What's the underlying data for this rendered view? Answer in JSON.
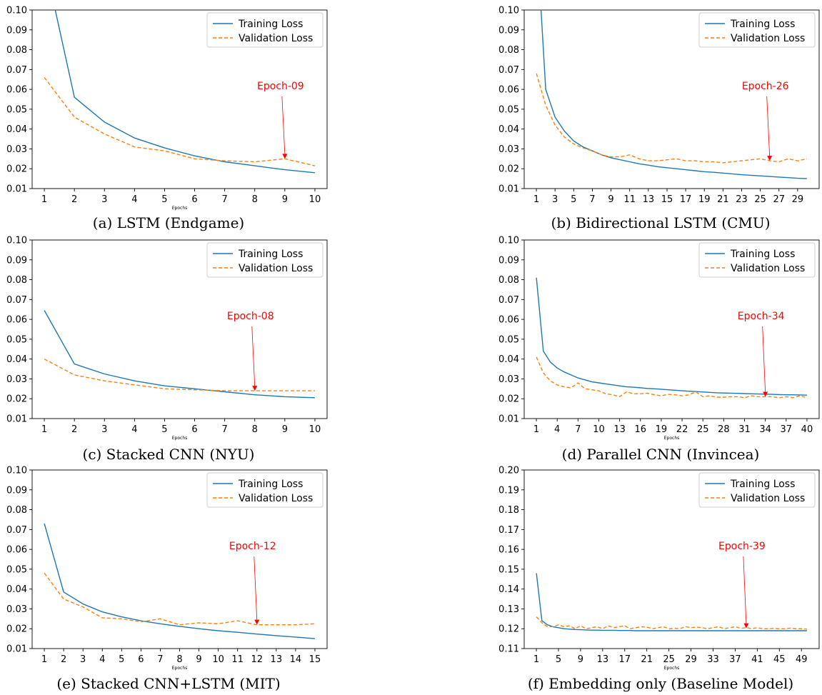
{
  "legend": {
    "training": "Training Loss",
    "validation": "Validation Loss"
  },
  "colors": {
    "training": "#1f77b4",
    "validation": "#ff7f0e",
    "annotation": "#ff0000"
  },
  "chart_data": [
    {
      "type": "line",
      "caption": "(a) LSTM (Endgame)",
      "xlabel": "Epochs",
      "ylim": [
        0.01,
        0.1
      ],
      "yticks": [
        "0.01",
        "0.02",
        "0.03",
        "0.04",
        "0.05",
        "0.06",
        "0.07",
        "0.08",
        "0.09",
        "0.10"
      ],
      "xticks": [
        1,
        2,
        3,
        4,
        5,
        6,
        7,
        8,
        9,
        10
      ],
      "x": [
        1,
        2,
        3,
        4,
        5,
        6,
        7,
        8,
        9,
        10
      ],
      "series": [
        {
          "name": "Training Loss",
          "values": [
            0.125,
            0.056,
            0.0435,
            0.0355,
            0.0305,
            0.0265,
            0.0235,
            0.0215,
            0.0195,
            0.018
          ]
        },
        {
          "name": "Validation Loss",
          "values": [
            0.066,
            0.046,
            0.0375,
            0.031,
            0.029,
            0.025,
            0.024,
            0.0235,
            0.025,
            0.0215
          ]
        }
      ],
      "annotation": {
        "text": "Epoch-09",
        "x": 9,
        "y": 0.025
      },
      "legend_position": "top-right"
    },
    {
      "type": "line",
      "caption": "(b) Bidirectional LSTM (CMU)",
      "xlabel": "",
      "ylim": [
        0.01,
        0.1
      ],
      "yticks": [
        "0.01",
        "0.02",
        "0.03",
        "0.04",
        "0.05",
        "0.06",
        "0.07",
        "0.08",
        "0.09",
        "0.10"
      ],
      "xticks": [
        1,
        3,
        5,
        7,
        9,
        11,
        13,
        15,
        17,
        19,
        21,
        23,
        25,
        27,
        29
      ],
      "x": [
        1,
        2,
        3,
        4,
        5,
        6,
        7,
        8,
        9,
        10,
        11,
        12,
        13,
        14,
        15,
        16,
        17,
        18,
        19,
        20,
        21,
        22,
        23,
        24,
        25,
        26,
        27,
        28,
        29,
        30
      ],
      "series": [
        {
          "name": "Training Loss",
          "values": [
            0.14,
            0.06,
            0.046,
            0.039,
            0.034,
            0.031,
            0.029,
            0.027,
            0.0255,
            0.0245,
            0.0235,
            0.0225,
            0.0218,
            0.021,
            0.0205,
            0.02,
            0.0195,
            0.019,
            0.0185,
            0.0182,
            0.0178,
            0.0174,
            0.017,
            0.0167,
            0.0164,
            0.0161,
            0.0158,
            0.0155,
            0.0152,
            0.015
          ]
        },
        {
          "name": "Validation Loss",
          "values": [
            0.068,
            0.052,
            0.042,
            0.036,
            0.0325,
            0.0305,
            0.029,
            0.027,
            0.026,
            0.026,
            0.027,
            0.025,
            0.024,
            0.024,
            0.0245,
            0.025,
            0.024,
            0.024,
            0.0235,
            0.0235,
            0.023,
            0.0235,
            0.024,
            0.0245,
            0.025,
            0.024,
            0.0235,
            0.025,
            0.024,
            0.025
          ]
        }
      ],
      "annotation": {
        "text": "Epoch-26",
        "x": 26,
        "y": 0.024
      },
      "legend_position": "top-right"
    },
    {
      "type": "line",
      "caption": "(c) Stacked CNN (NYU)",
      "xlabel": "Epochs",
      "ylim": [
        0.01,
        0.1
      ],
      "yticks": [
        "0.01",
        "0.02",
        "0.03",
        "0.04",
        "0.05",
        "0.06",
        "0.07",
        "0.08",
        "0.09",
        "0.10"
      ],
      "xticks": [
        1,
        2,
        3,
        4,
        5,
        6,
        7,
        8,
        9,
        10
      ],
      "x": [
        1,
        2,
        3,
        4,
        5,
        6,
        7,
        8,
        9,
        10
      ],
      "series": [
        {
          "name": "Training Loss",
          "values": [
            0.0645,
            0.0375,
            0.0325,
            0.029,
            0.0265,
            0.025,
            0.0235,
            0.022,
            0.021,
            0.0205
          ]
        },
        {
          "name": "Validation Loss",
          "values": [
            0.04,
            0.032,
            0.029,
            0.027,
            0.025,
            0.0245,
            0.024,
            0.024,
            0.024,
            0.024
          ]
        }
      ],
      "annotation": {
        "text": "Epoch-08",
        "x": 8,
        "y": 0.024
      },
      "legend_position": "top-right"
    },
    {
      "type": "line",
      "caption": "(d) Parallel CNN (Invincea)",
      "xlabel": "Epochs",
      "ylim": [
        0.01,
        0.1
      ],
      "yticks": [
        "0.01",
        "0.02",
        "0.03",
        "0.04",
        "0.05",
        "0.06",
        "0.07",
        "0.08",
        "0.09",
        "0.10"
      ],
      "xticks": [
        1,
        4,
        7,
        10,
        13,
        16,
        19,
        22,
        25,
        28,
        31,
        34,
        37,
        40
      ],
      "x": [
        1,
        2,
        3,
        4,
        5,
        6,
        7,
        8,
        9,
        10,
        11,
        12,
        13,
        14,
        15,
        16,
        17,
        18,
        19,
        20,
        21,
        22,
        23,
        24,
        25,
        26,
        27,
        28,
        29,
        30,
        31,
        32,
        33,
        34,
        35,
        36,
        37,
        38,
        39,
        40
      ],
      "series": [
        {
          "name": "Training Loss",
          "values": [
            0.081,
            0.044,
            0.0385,
            0.0355,
            0.0335,
            0.032,
            0.0305,
            0.0295,
            0.0285,
            0.028,
            0.0275,
            0.027,
            0.0265,
            0.026,
            0.0258,
            0.0255,
            0.0252,
            0.025,
            0.0248,
            0.0245,
            0.0243,
            0.024,
            0.0238,
            0.0236,
            0.0234,
            0.0232,
            0.023,
            0.0229,
            0.0228,
            0.0227,
            0.0226,
            0.0225,
            0.0224,
            0.0223,
            0.0222,
            0.0221,
            0.022,
            0.022,
            0.0219,
            0.0218
          ]
        },
        {
          "name": "Validation Loss",
          "values": [
            0.041,
            0.033,
            0.029,
            0.027,
            0.026,
            0.0255,
            0.028,
            0.025,
            0.0245,
            0.024,
            0.0225,
            0.022,
            0.021,
            0.0235,
            0.0225,
            0.0225,
            0.0228,
            0.022,
            0.0215,
            0.0222,
            0.022,
            0.0215,
            0.022,
            0.0235,
            0.021,
            0.0215,
            0.0208,
            0.0208,
            0.021,
            0.021,
            0.0205,
            0.0215,
            0.021,
            0.021,
            0.021,
            0.0205,
            0.021,
            0.0205,
            0.0215,
            0.0205
          ]
        }
      ],
      "annotation": {
        "text": "Epoch-34",
        "x": 34,
        "y": 0.021
      },
      "legend_position": "top-right"
    },
    {
      "type": "line",
      "caption": "(e) Stacked CNN+LSTM (MIT)",
      "xlabel": "Epochs",
      "ylim": [
        0.01,
        0.1
      ],
      "yticks": [
        "0.01",
        "0.02",
        "0.03",
        "0.04",
        "0.05",
        "0.06",
        "0.07",
        "0.08",
        "0.09",
        "0.10"
      ],
      "xticks": [
        1,
        2,
        3,
        4,
        5,
        6,
        7,
        8,
        9,
        10,
        11,
        12,
        13,
        14,
        15
      ],
      "x": [
        1,
        2,
        3,
        4,
        5,
        6,
        7,
        8,
        9,
        10,
        11,
        12,
        13,
        14,
        15
      ],
      "series": [
        {
          "name": "Training Loss",
          "values": [
            0.073,
            0.0385,
            0.0325,
            0.0285,
            0.026,
            0.024,
            0.0225,
            0.0212,
            0.02,
            0.019,
            0.0182,
            0.0173,
            0.0165,
            0.0158,
            0.015
          ]
        },
        {
          "name": "Validation Loss",
          "values": [
            0.048,
            0.035,
            0.031,
            0.0255,
            0.025,
            0.0235,
            0.025,
            0.022,
            0.023,
            0.0225,
            0.024,
            0.022,
            0.022,
            0.022,
            0.0225
          ]
        }
      ],
      "annotation": {
        "text": "Epoch-12",
        "x": 12,
        "y": 0.022
      },
      "legend_position": "top-right"
    },
    {
      "type": "line",
      "caption": "(f) Embedding only (Baseline Model)",
      "xlabel": "Epochs",
      "ylim": [
        0.11,
        0.2
      ],
      "yticks": [
        "0.11",
        "0.12",
        "0.13",
        "0.14",
        "0.15",
        "0.16",
        "0.17",
        "0.18",
        "0.19",
        "0.20"
      ],
      "xticks": [
        1,
        5,
        9,
        13,
        17,
        21,
        25,
        29,
        33,
        37,
        41,
        45,
        49
      ],
      "x": [
        1,
        2,
        3,
        4,
        5,
        6,
        7,
        8,
        9,
        10,
        11,
        12,
        13,
        14,
        15,
        16,
        17,
        18,
        19,
        20,
        21,
        22,
        23,
        24,
        25,
        26,
        27,
        28,
        29,
        30,
        31,
        32,
        33,
        34,
        35,
        36,
        37,
        38,
        39,
        40,
        41,
        42,
        43,
        44,
        45,
        46,
        47,
        48,
        49,
        50
      ],
      "series": [
        {
          "name": "Training Loss",
          "values": [
            0.148,
            0.124,
            0.122,
            0.121,
            0.1205,
            0.12,
            0.1198,
            0.1196,
            0.1195,
            0.1194,
            0.1193,
            0.1193,
            0.1192,
            0.1192,
            0.1192,
            0.1191,
            0.1191,
            0.1191,
            0.119,
            0.119,
            0.119,
            0.119,
            0.119,
            0.119,
            0.119,
            0.119,
            0.119,
            0.119,
            0.119,
            0.119,
            0.119,
            0.119,
            0.119,
            0.119,
            0.119,
            0.119,
            0.119,
            0.119,
            0.119,
            0.119,
            0.119,
            0.119,
            0.119,
            0.119,
            0.119,
            0.119,
            0.119,
            0.119,
            0.119,
            0.119
          ]
        },
        {
          "name": "Validation Loss",
          "values": [
            0.126,
            0.123,
            0.121,
            0.121,
            0.122,
            0.121,
            0.1215,
            0.12,
            0.1215,
            0.12,
            0.1205,
            0.121,
            0.12,
            0.1215,
            0.1205,
            0.121,
            0.1215,
            0.12,
            0.1205,
            0.121,
            0.1208,
            0.12,
            0.1205,
            0.121,
            0.12,
            0.1202,
            0.12,
            0.121,
            0.1205,
            0.1208,
            0.1205,
            0.12,
            0.1205,
            0.121,
            0.12,
            0.1205,
            0.121,
            0.1202,
            0.1205,
            0.12,
            0.1205,
            0.12,
            0.12,
            0.1202,
            0.12,
            0.12,
            0.1203,
            0.12,
            0.12,
            0.1198
          ]
        }
      ],
      "annotation": {
        "text": "Epoch-39",
        "x": 39,
        "y": 0.1202
      },
      "legend_position": "top-right"
    }
  ]
}
